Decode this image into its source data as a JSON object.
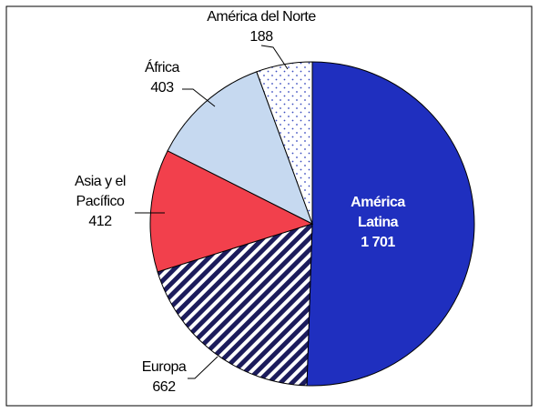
{
  "chart_data": {
    "type": "pie",
    "categories": [
      "América Latina",
      "Europa",
      "Asia y el Pacífico",
      "África",
      "América del Norte"
    ],
    "values": [
      1701,
      662,
      412,
      403,
      188
    ],
    "value_labels": [
      "1 701",
      "662",
      "412",
      "403",
      "188"
    ],
    "colors": [
      "#1f2fbf",
      "#1c1c5c",
      "#f2404c",
      "#c6d9f0",
      "#ffffff"
    ]
  }
}
